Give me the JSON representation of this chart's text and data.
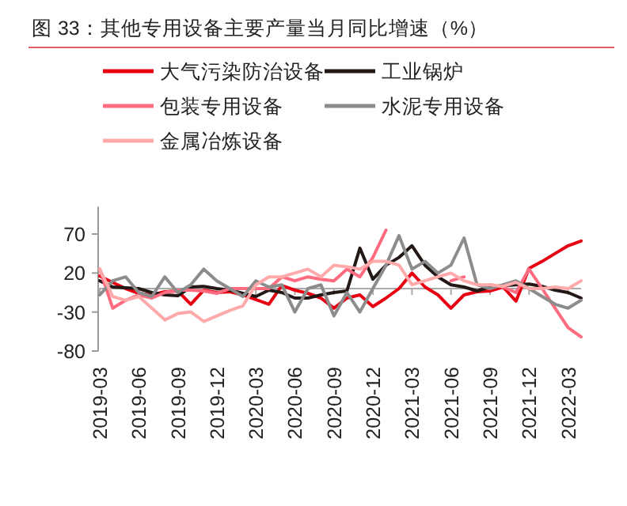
{
  "chart_data": {
    "type": "line",
    "title": "图 33：其他专用设备主要产量当月同比增速（%）",
    "categories": [
      "2019-03",
      null,
      null,
      "2019-06",
      null,
      null,
      "2019-09",
      null,
      null,
      "2019-12",
      null,
      null,
      "2020-03",
      null,
      null,
      "2020-06",
      null,
      null,
      "2020-09",
      null,
      null,
      "2020-12",
      null,
      null,
      "2021-03",
      null,
      null,
      "2021-06",
      null,
      null,
      "2021-09",
      null,
      null,
      "2021-12",
      null,
      null,
      "2022-03",
      null
    ],
    "series": [
      {
        "name": "大气污染防治设备",
        "color": "#e60012",
        "values": [
          16,
          8,
          0,
          -6,
          -8,
          -4,
          -3,
          -20,
          -2,
          -5,
          -4,
          -8,
          -14,
          -20,
          4,
          -2,
          -6,
          -12,
          -25,
          -12,
          -8,
          -23,
          -12,
          0,
          20,
          2,
          -8,
          -25,
          -8,
          -4,
          -3,
          2,
          -16,
          26,
          35,
          45,
          55,
          61
        ]
      },
      {
        "name": "工业锅炉",
        "color": "#231815",
        "values": [
          10,
          2,
          1,
          0,
          -5,
          -8,
          -9,
          2,
          3,
          0,
          -2,
          -6,
          -10,
          -2,
          -5,
          -12,
          -12,
          -8,
          -5,
          -3,
          52,
          12,
          30,
          40,
          55,
          30,
          15,
          5,
          2,
          -3,
          2,
          4,
          5,
          6,
          3,
          -2,
          -5,
          -12
        ]
      },
      {
        "name": "包装专用设备",
        "color": "#ff6b7f",
        "values": [
          25,
          -25,
          -15,
          -8,
          -12,
          -5,
          -2,
          -2,
          -3,
          -6,
          0,
          0,
          0,
          0,
          15,
          10,
          15,
          12,
          10,
          25,
          15,
          40,
          75,
          null,
          null,
          null,
          null,
          10,
          15,
          null,
          5,
          2,
          -5,
          25,
          0,
          -25,
          -50,
          -62
        ]
      },
      {
        "name": "水泥专用设备",
        "color": "#8c8c8c",
        "values": [
          -8,
          10,
          15,
          -5,
          -10,
          15,
          -5,
          5,
          25,
          10,
          0,
          -10,
          10,
          2,
          5,
          -30,
          0,
          5,
          -35,
          -5,
          -30,
          0,
          30,
          68,
          25,
          35,
          20,
          30,
          65,
          5,
          0,
          5,
          10,
          0,
          -10,
          -20,
          -25,
          -15
        ]
      },
      {
        "name": "金属冶炼设备",
        "color": "#ffaaaa",
        "values": [
          25,
          -10,
          -15,
          -10,
          -25,
          -40,
          -32,
          -30,
          -42,
          -35,
          -28,
          -22,
          5,
          15,
          15,
          20,
          25,
          15,
          30,
          28,
          25,
          35,
          35,
          30,
          5,
          10,
          15,
          20,
          10,
          5,
          5,
          3,
          8,
          0,
          0,
          2,
          0,
          10
        ]
      }
    ],
    "ylim": [
      -80,
      105
    ],
    "yticks": [
      -80,
      -30,
      20,
      70
    ],
    "legend": "top"
  }
}
